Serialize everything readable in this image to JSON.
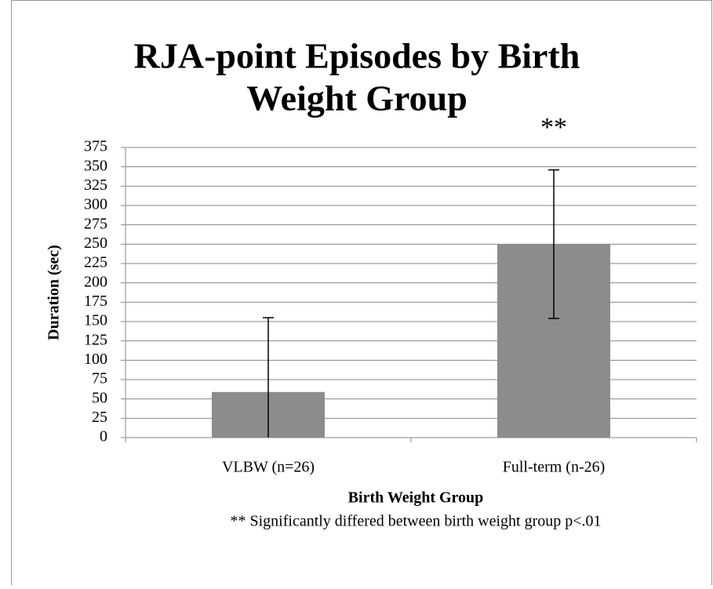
{
  "chart_data": {
    "type": "bar",
    "title": [
      "RJA-point Episodes by Birth",
      "Weight Group"
    ],
    "annotation": "**",
    "footnote": "** Significantly differed between birth weight group p<.01",
    "xlabel": "Birth Weight Group",
    "ylabel": "Duration (sec)",
    "categories": [
      "VLBW (n=26)",
      "Full-term (n-26)"
    ],
    "values": [
      59,
      250
    ],
    "errors": [
      96,
      96
    ],
    "color": "#8c8c8c",
    "ylim": [
      0,
      375
    ],
    "yticks": [
      0,
      25,
      50,
      75,
      100,
      125,
      150,
      175,
      200,
      225,
      250,
      275,
      300,
      325,
      350,
      375
    ],
    "grid": true
  }
}
